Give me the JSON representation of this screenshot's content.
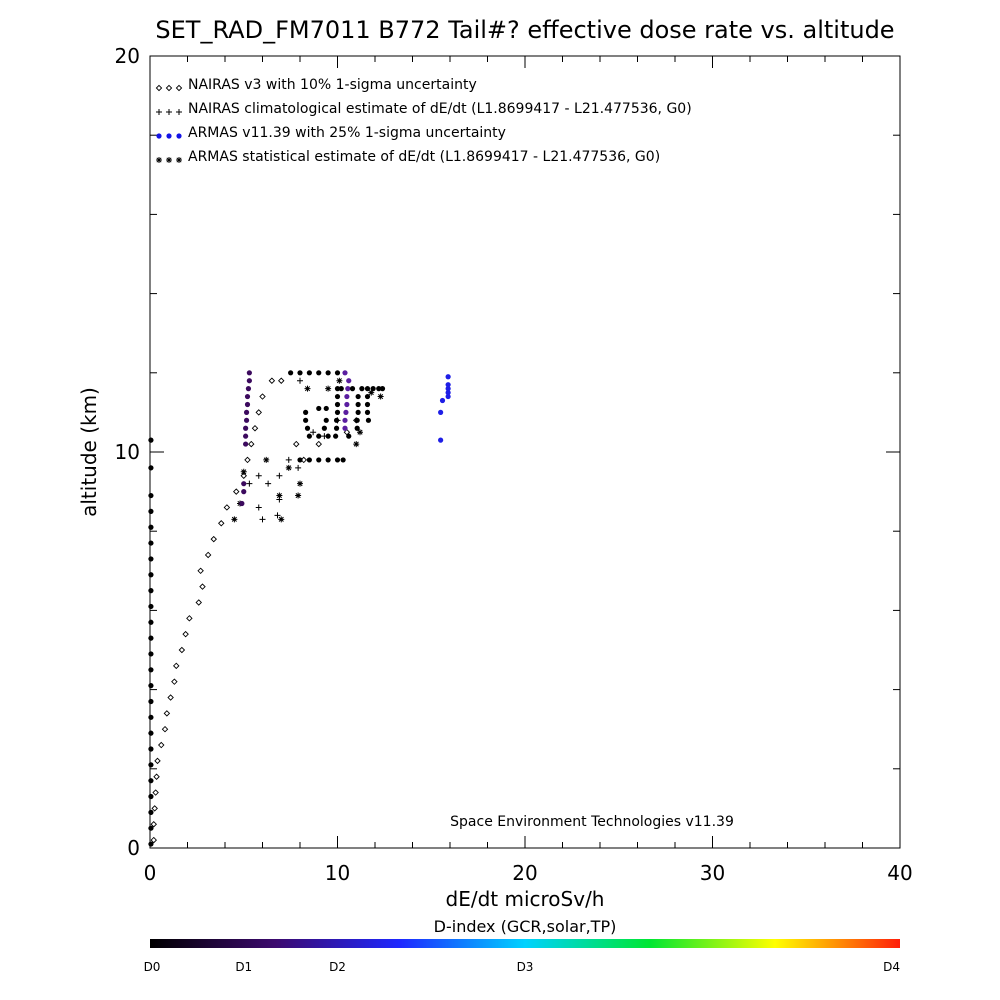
{
  "chart_data": {
    "type": "scatter",
    "title": "SET_RAD_FM7011  B772 Tail#? effective dose rate vs. altitude",
    "xlabel": "dE/dt microSv/h",
    "ylabel": "altitude (km)",
    "xlim": [
      0,
      40
    ],
    "ylim": [
      0,
      20
    ],
    "x_ticks": [
      "0",
      "10",
      "20",
      "30",
      "40"
    ],
    "y_ticks": [
      "0",
      "10",
      "20"
    ],
    "grid": false,
    "legend_position": "top-left",
    "legend": [
      {
        "label": "NAIRAS v3 with 10% 1-sigma uncertainty",
        "marker": "diamond",
        "color": "#000000"
      },
      {
        "label": "NAIRAS climatological estimate of dE/dt (L1.8699417 - L21.477536, G0)",
        "marker": "plus",
        "color": "#000000"
      },
      {
        "label": "ARMAS v11.39 with 25% 1-sigma uncertainty",
        "marker": "dot",
        "color": "#1414e6"
      },
      {
        "label": "ARMAS statistical estimate of dE/dt (L1.8699417 - L21.477536, G0)",
        "marker": "asterisk",
        "color": "#000000"
      }
    ],
    "annotation": "Space Environment Technologies v11.39",
    "colorbar": {
      "title": "D-index (GCR,solar,TP)",
      "labels": [
        {
          "text": "D0",
          "value": 0
        },
        {
          "text": "D1",
          "value": 5
        },
        {
          "text": "D2",
          "value": 10
        },
        {
          "text": "D3",
          "value": 20
        },
        {
          "text": "D4",
          "value": 40
        }
      ],
      "stops": [
        "#000000",
        "#3c0a6e",
        "#1e28ff",
        "#00d2ff",
        "#00e632",
        "#ffff00",
        "#ff1e0a"
      ]
    },
    "series": [
      {
        "name": "NAIRAS v3 with 10% 1-sigma uncertainty",
        "marker": "diamond",
        "points": [
          [
            0.2,
            0.2
          ],
          [
            0.2,
            0.6
          ],
          [
            0.25,
            1.0
          ],
          [
            0.3,
            1.4
          ],
          [
            0.35,
            1.8
          ],
          [
            0.4,
            2.2
          ],
          [
            0.6,
            2.6
          ],
          [
            0.8,
            3.0
          ],
          [
            0.9,
            3.4
          ],
          [
            1.1,
            3.8
          ],
          [
            1.3,
            4.2
          ],
          [
            1.4,
            4.6
          ],
          [
            1.7,
            5.0
          ],
          [
            1.9,
            5.4
          ],
          [
            2.1,
            5.8
          ],
          [
            2.6,
            6.2
          ],
          [
            2.8,
            6.6
          ],
          [
            2.7,
            7.0
          ],
          [
            3.1,
            7.4
          ],
          [
            3.4,
            7.8
          ],
          [
            3.8,
            8.2
          ],
          [
            4.1,
            8.6
          ],
          [
            4.6,
            9.0
          ],
          [
            5.0,
            9.4
          ],
          [
            5.2,
            9.8
          ],
          [
            5.4,
            10.2
          ],
          [
            5.6,
            10.6
          ],
          [
            5.8,
            11.0
          ],
          [
            6.0,
            11.4
          ],
          [
            6.5,
            11.8
          ],
          [
            7.0,
            11.8
          ],
          [
            7.8,
            10.2
          ],
          [
            8.2,
            9.8
          ],
          [
            9.0,
            10.2
          ],
          [
            10.5,
            10.5
          ],
          [
            11.0,
            10.8
          ]
        ]
      },
      {
        "name": "NAIRAS climatological estimate of dE/dt (L1.8699417 - L21.477536, G0)",
        "marker": "plus",
        "points": [
          [
            5.3,
            9.2
          ],
          [
            5.8,
            8.6
          ],
          [
            5.8,
            9.4
          ],
          [
            6.0,
            8.3
          ],
          [
            6.3,
            9.2
          ],
          [
            6.8,
            8.4
          ],
          [
            6.9,
            8.8
          ],
          [
            6.9,
            9.4
          ],
          [
            7.4,
            9.8
          ],
          [
            7.9,
            9.6
          ],
          [
            8.0,
            11.8
          ],
          [
            8.7,
            10.5
          ],
          [
            9.3,
            10.4
          ],
          [
            10.0,
            10.8
          ]
        ]
      },
      {
        "name": "ARMAS statistical estimate of dE/dt (L1.8699417 - L21.477536, G0)",
        "marker": "asterisk",
        "points": [
          [
            4.5,
            8.3
          ],
          [
            4.8,
            8.7
          ],
          [
            5.0,
            9.5
          ],
          [
            6.2,
            9.8
          ],
          [
            6.9,
            8.9
          ],
          [
            7.0,
            8.3
          ],
          [
            7.4,
            9.6
          ],
          [
            7.9,
            8.9
          ],
          [
            8.0,
            9.2
          ],
          [
            8.4,
            11.6
          ],
          [
            9.5,
            11.6
          ],
          [
            10.1,
            11.8
          ],
          [
            11.0,
            10.2
          ],
          [
            11.2,
            10.5
          ],
          [
            11.8,
            11.5
          ],
          [
            12.3,
            11.4
          ]
        ]
      },
      {
        "name": "ARMAS v11.39 with 25% 1-sigma uncertainty",
        "marker": "dot",
        "points": [
          [
            0.05,
            0.1
          ],
          [
            0.05,
            0.5
          ],
          [
            0.05,
            0.9
          ],
          [
            0.05,
            1.3
          ],
          [
            0.05,
            1.7
          ],
          [
            0.05,
            2.1
          ],
          [
            0.05,
            2.5
          ],
          [
            0.05,
            2.9
          ],
          [
            0.05,
            3.3
          ],
          [
            0.05,
            3.7
          ],
          [
            0.05,
            4.1
          ],
          [
            0.05,
            4.5
          ],
          [
            0.05,
            4.9
          ],
          [
            0.05,
            5.3
          ],
          [
            0.05,
            5.7
          ],
          [
            0.05,
            6.1
          ],
          [
            0.05,
            6.5
          ],
          [
            0.05,
            6.9
          ],
          [
            0.05,
            7.3
          ],
          [
            0.05,
            7.7
          ],
          [
            0.05,
            8.1
          ],
          [
            0.05,
            8.5
          ],
          [
            0.05,
            8.9
          ],
          [
            0.05,
            9.6
          ],
          [
            0.05,
            10.3
          ],
          [
            5.1,
            10.2
          ],
          [
            5.1,
            10.4
          ],
          [
            5.1,
            10.6
          ],
          [
            5.15,
            10.8
          ],
          [
            5.15,
            11.0
          ],
          [
            5.2,
            11.2
          ],
          [
            5.2,
            11.4
          ],
          [
            5.25,
            11.6
          ],
          [
            5.3,
            11.8
          ],
          [
            5.3,
            12.0
          ],
          [
            5.0,
            9.0
          ],
          [
            5.0,
            9.2
          ],
          [
            4.9,
            8.7
          ],
          [
            8.0,
            9.8
          ],
          [
            8.5,
            9.8
          ],
          [
            9.0,
            9.8
          ],
          [
            9.5,
            9.8
          ],
          [
            10.0,
            9.8
          ],
          [
            10.3,
            9.8
          ],
          [
            10.4,
            10.6
          ],
          [
            10.4,
            10.8
          ],
          [
            10.45,
            11.0
          ],
          [
            10.5,
            11.2
          ],
          [
            10.5,
            11.4
          ],
          [
            10.55,
            11.6
          ],
          [
            10.6,
            11.8
          ],
          [
            10.6,
            10.4
          ],
          [
            8.3,
            10.8
          ],
          [
            8.3,
            11.0
          ],
          [
            8.4,
            10.6
          ],
          [
            8.5,
            10.4
          ],
          [
            9.0,
            10.4
          ],
          [
            9.5,
            10.4
          ],
          [
            9.9,
            10.4
          ],
          [
            9.95,
            10.6
          ],
          [
            9.95,
            10.8
          ],
          [
            10.0,
            11.0
          ],
          [
            10.0,
            11.2
          ],
          [
            10.0,
            11.4
          ],
          [
            10.0,
            11.6
          ],
          [
            10.2,
            11.6
          ],
          [
            10.8,
            11.6
          ],
          [
            11.3,
            11.6
          ],
          [
            11.6,
            11.6
          ],
          [
            11.05,
            10.6
          ],
          [
            11.05,
            10.8
          ],
          [
            11.1,
            11.0
          ],
          [
            11.1,
            11.2
          ],
          [
            11.1,
            11.4
          ],
          [
            11.6,
            11.0
          ],
          [
            11.6,
            11.2
          ],
          [
            11.6,
            11.4
          ],
          [
            11.65,
            10.8
          ],
          [
            11.9,
            11.6
          ],
          [
            12.2,
            11.6
          ],
          [
            12.4,
            11.6
          ],
          [
            7.5,
            12.0
          ],
          [
            8.0,
            12.0
          ],
          [
            8.5,
            12.0
          ],
          [
            9.0,
            12.0
          ],
          [
            9.5,
            12.0
          ],
          [
            10.0,
            12.0
          ],
          [
            10.4,
            12.0
          ],
          [
            9.0,
            11.1
          ],
          [
            9.4,
            10.8
          ],
          [
            9.4,
            11.1
          ],
          [
            9.3,
            10.6
          ],
          [
            15.5,
            10.3
          ],
          [
            15.5,
            11.0
          ],
          [
            15.6,
            11.3
          ],
          [
            15.9,
            11.4
          ],
          [
            15.9,
            11.5
          ],
          [
            15.9,
            11.6
          ],
          [
            15.9,
            11.7
          ],
          [
            15.9,
            11.9
          ]
        ]
      }
    ]
  }
}
